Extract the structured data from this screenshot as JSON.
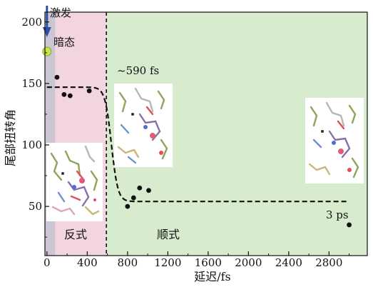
{
  "chart_data": {
    "type": "scatter",
    "xlabel": "延迟/fs",
    "ylabel": "尾部扭转角",
    "xlim": [
      -20,
      3180
    ],
    "ylim": [
      10,
      208
    ],
    "x_ticks": [
      0,
      400,
      800,
      1200,
      1600,
      2000,
      2400,
      2800
    ],
    "y_ticks": [
      50,
      100,
      150,
      200
    ],
    "grid": false,
    "regions": [
      {
        "name": "trans",
        "label": "反式",
        "x_range": [
          -20,
          590
        ],
        "color": "#f3d5e0"
      },
      {
        "name": "cis",
        "label": "顺式",
        "x_range": [
          590,
          3180
        ],
        "color": "#d7ebcf"
      }
    ],
    "dark_state_band": {
      "x_range": [
        -20,
        80
      ],
      "color": "#a9b9c9"
    },
    "boundary_x": 590,
    "annotations": {
      "excitation": "激发",
      "dark_state": "暗态",
      "time_constant": "~590 fs",
      "last_delay": "3 ps"
    },
    "dark_state_point": {
      "x": 0,
      "y": 176
    },
    "points": [
      {
        "x": 100,
        "y": 155
      },
      {
        "x": 170,
        "y": 141
      },
      {
        "x": 230,
        "y": 140
      },
      {
        "x": 420,
        "y": 144
      },
      {
        "x": 800,
        "y": 50
      },
      {
        "x": 860,
        "y": 57
      },
      {
        "x": 920,
        "y": 65
      },
      {
        "x": 1010,
        "y": 63
      },
      {
        "x": 3000,
        "y": 35
      }
    ],
    "fit": {
      "style": "dashed",
      "high": 147,
      "low": 54,
      "x0": 640,
      "width": 32,
      "x_range": [
        0,
        3000
      ]
    }
  }
}
